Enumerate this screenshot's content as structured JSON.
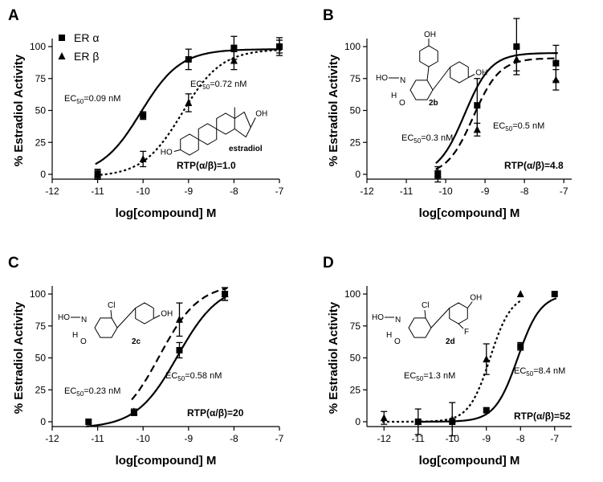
{
  "chart_data": [
    {
      "panel": "A",
      "type": "scatter",
      "xlabel": "log[compound] M",
      "ylabel": "% Estradiol Activity",
      "xlim": [
        -12,
        -7
      ],
      "ylim": [
        0,
        100
      ],
      "xticks": [
        "-12",
        "-11",
        "-10",
        "-9",
        "-8",
        "-7"
      ],
      "yticks": [
        "0",
        "25",
        "50",
        "75",
        "100"
      ],
      "legend": [
        "ER α",
        "ER β"
      ],
      "compound": "estradiol",
      "ec50_alpha": "EC50=0.09 nM",
      "ec50_beta": "EC50=0.72 nM",
      "rtp": "RTP(α/β)=1.0",
      "series": [
        {
          "name": "ER α",
          "marker": "square",
          "line": "solid",
          "x": [
            -11,
            -10,
            -9,
            -8,
            -7
          ],
          "y": [
            0,
            46,
            90,
            99,
            100
          ],
          "err": [
            4,
            3,
            8,
            9,
            7
          ]
        },
        {
          "name": "ER β",
          "marker": "triangle",
          "line": "dotted",
          "x": [
            -11,
            -10,
            -9,
            -8,
            -7
          ],
          "y": [
            0,
            12,
            56,
            89,
            100
          ],
          "err": [
            3,
            6,
            7,
            7,
            5
          ]
        }
      ]
    },
    {
      "panel": "B",
      "type": "scatter",
      "xlabel": "log[compound] M",
      "ylabel": "% Estradiol Activity",
      "xlim": [
        -12,
        -6.8
      ],
      "ylim": [
        0,
        100
      ],
      "xticks": [
        "-12",
        "-11",
        "-10",
        "-9",
        "-8",
        "-7"
      ],
      "yticks": [
        "0",
        "25",
        "50",
        "75",
        "100"
      ],
      "compound": "2b",
      "ec50_alpha": "EC50=0.3 nM",
      "ec50_beta": "EC50=0.5 nM",
      "rtp": "RTP(α/β)=4.8",
      "series": [
        {
          "name": "ER α",
          "marker": "square",
          "line": "solid",
          "x": [
            -10.2,
            -9.2,
            -8.2,
            -7.2
          ],
          "y": [
            0,
            54,
            100,
            87
          ],
          "err": [
            6,
            21,
            22,
            14
          ]
        },
        {
          "name": "ER β",
          "marker": "triangle",
          "line": "dashed",
          "x": [
            -10.2,
            -9.2,
            -8.2,
            -7.2
          ],
          "y": [
            0,
            35,
            90,
            74
          ],
          "err": [
            3,
            5,
            9,
            8
          ]
        }
      ]
    },
    {
      "panel": "C",
      "type": "scatter",
      "xlabel": "log[compound] M",
      "ylabel": "% Estradiol Activity",
      "xlim": [
        -12,
        -7
      ],
      "ylim": [
        0,
        100
      ],
      "xticks": [
        "-12",
        "-11",
        "-10",
        "-9",
        "-8",
        "-7"
      ],
      "yticks": [
        "0",
        "25",
        "50",
        "75",
        "100"
      ],
      "compound": "2c",
      "ec50_alpha": "EC50=0.58 nM",
      "ec50_beta": "EC50=0.23 nM",
      "rtp": "RTP(α/β)=20",
      "series": [
        {
          "name": "ER α",
          "marker": "square",
          "line": "solid",
          "x": [
            -11.2,
            -10.2,
            -9.2,
            -8.2
          ],
          "y": [
            0,
            7,
            56,
            100
          ],
          "err": [
            0,
            2,
            6,
            5
          ]
        },
        {
          "name": "ER β",
          "marker": "triangle",
          "line": "dashed",
          "x": [
            -10.2,
            -9.2,
            -8.2
          ],
          "y": [
            8,
            80,
            100
          ],
          "err": [
            2,
            13,
            5
          ]
        }
      ]
    },
    {
      "panel": "D",
      "type": "scatter",
      "xlabel": "log[compound] M",
      "ylabel": "% Estradiol Activity",
      "xlim": [
        -12.5,
        -6.5
      ],
      "ylim": [
        0,
        100
      ],
      "xticks": [
        "-12",
        "-11",
        "-10",
        "-9",
        "-8",
        "-7"
      ],
      "yticks": [
        "0",
        "25",
        "50",
        "75",
        "100"
      ],
      "compound": "2d",
      "ec50_alpha": "EC50=8.4 nM",
      "ec50_beta": "EC50=1.3 nM",
      "rtp": "RTP(α/β)=52",
      "series": [
        {
          "name": "ER α",
          "marker": "square",
          "line": "solid",
          "x": [
            -11,
            -10,
            -9,
            -8,
            -7
          ],
          "y": [
            0,
            0,
            9,
            59,
            100
          ],
          "err": [
            0,
            0,
            0,
            3,
            0
          ]
        },
        {
          "name": "ER β",
          "marker": "triangle",
          "line": "dotted",
          "x": [
            -12,
            -11,
            -10,
            -9,
            -8
          ],
          "y": [
            3,
            0,
            2,
            49,
            100
          ],
          "err": [
            5,
            10,
            13,
            12,
            0
          ]
        }
      ]
    }
  ],
  "molecules": {
    "oh": "OH",
    "ho": "HO",
    "h": "H",
    "o": "O",
    "n": "N",
    "cl": "Cl",
    "f": "F"
  }
}
